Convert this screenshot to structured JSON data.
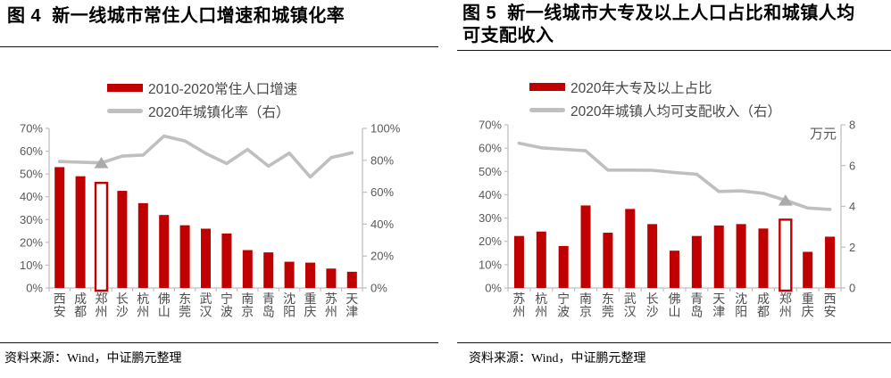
{
  "colors": {
    "bar": "#c00000",
    "line": "#bfbfbf",
    "marker": "#ababab",
    "axis": "#bfbfbf",
    "tick_text": "#595959",
    "category_text": "#4d4d4d"
  },
  "source": {
    "label": "资料来源：Wind，中证鹏元整理"
  },
  "figures": [
    {
      "title": "图 4  新一线城市常住人口增速和城镇化率",
      "legend": [
        {
          "label": "2010-2020常住人口增速"
        },
        {
          "label": "2020年城镇化率（右）"
        }
      ],
      "chart_data": {
        "type": "bar+line",
        "grid": false,
        "legend_position": "top",
        "categories": [
          "西安",
          "成都",
          "郑州",
          "长沙",
          "杭州",
          "佛山",
          "东莞",
          "武汉",
          "宁波",
          "南京",
          "青岛",
          "沈阳",
          "重庆",
          "苏州",
          "天津"
        ],
        "series": [
          {
            "name": "2010-2020常住人口增速",
            "type": "bar",
            "axis": "left",
            "values": [
              53.0,
              49.0,
              46.1,
              42.6,
              37.2,
              32.0,
              27.5,
              26.0,
              23.9,
              16.6,
              15.6,
              11.5,
              11.1,
              8.5,
              7.1
            ]
          },
          {
            "name": "2020年城镇化率（右）",
            "type": "line",
            "axis": "right",
            "values": [
              79.2,
              78.8,
              78.4,
              82.6,
              83.3,
              95.2,
              92.1,
              84.3,
              78.0,
              86.8,
              76.3,
              84.5,
              69.5,
              81.7,
              84.7
            ],
            "marker_index": 2,
            "marker_category": "郑州"
          }
        ],
        "left_axis": {
          "min": 0,
          "max": 70,
          "step": 10,
          "suffix": "%",
          "unit_label": ""
        },
        "right_axis": {
          "min": 0,
          "max": 100,
          "step": 20,
          "suffix": "%",
          "unit_label": ""
        },
        "highlight_index": 2,
        "highlight_category": "郑州"
      }
    },
    {
      "title": "图 5  新一线城市大专及以上人口占比和城镇人均可支配收入",
      "legend": [
        {
          "label": "2020年大专及以上占比"
        },
        {
          "label": "2020年城镇人均可支配收入（右）"
        }
      ],
      "chart_data": {
        "type": "bar+line",
        "grid": false,
        "legend_position": "top",
        "categories": [
          "苏州",
          "杭州",
          "宁波",
          "南京",
          "东莞",
          "武汉",
          "长沙",
          "佛山",
          "青岛",
          "天津",
          "沈阳",
          "成都",
          "郑州",
          "重庆",
          "西安"
        ],
        "series": [
          {
            "name": "2020年大专及以上占比",
            "type": "bar",
            "axis": "left",
            "values": [
              22.3,
              24.2,
              18.0,
              35.4,
              23.7,
              33.9,
              27.4,
              16.0,
              22.3,
              26.8,
              27.4,
              25.5,
              29.3,
              15.5,
              22.0
            ]
          },
          {
            "name": "2020年城镇人均可支配收入（右）",
            "type": "line",
            "axis": "right",
            "values": [
              7.1,
              6.87,
              6.8,
              6.73,
              5.78,
              5.78,
              5.77,
              5.66,
              5.58,
              4.73,
              4.76,
              4.64,
              4.3,
              3.92,
              3.85
            ],
            "marker_index": 12,
            "marker_category": "郑州"
          }
        ],
        "left_axis": {
          "min": 0,
          "max": 70,
          "step": 10,
          "suffix": "%",
          "unit_label": ""
        },
        "right_axis": {
          "min": 0,
          "max": 8,
          "step": 2,
          "suffix": "",
          "unit_label": "万元"
        },
        "highlight_index": 12,
        "highlight_category": "郑州"
      }
    }
  ]
}
